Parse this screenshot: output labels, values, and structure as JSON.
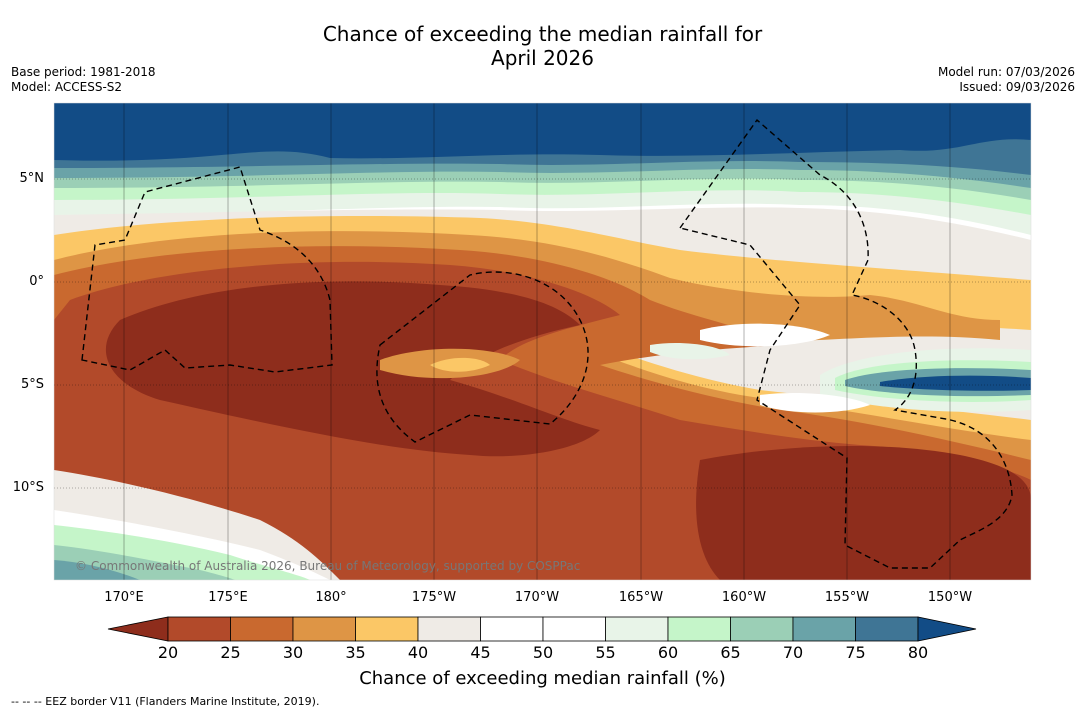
{
  "title": {
    "line1": "Chance of exceeding the median rainfall for",
    "line2": "April 2026"
  },
  "meta": {
    "base_period": "Base period: 1981-2018",
    "model": "Model: ACCESS-S2",
    "model_run": "Model run: 07/03/2026",
    "issued": "Issued: 09/03/2026"
  },
  "map": {
    "lat_labels": [
      "5°N",
      "0°",
      "5°S",
      "10°S"
    ],
    "lon_labels": [
      "170°E",
      "175°E",
      "180°",
      "175°W",
      "170°W",
      "165°W",
      "160°W",
      "155°W",
      "150°W"
    ],
    "copyright": "© Commonwealth of Australia 2026, Bureau of Meteorology, supported by COSPPac"
  },
  "colorbar": {
    "ticks": [
      "20",
      "25",
      "30",
      "35",
      "40",
      "45",
      "50",
      "55",
      "60",
      "65",
      "70",
      "75",
      "80"
    ],
    "colors": [
      "#8e2d1c",
      "#b24a2a",
      "#c9692f",
      "#de9545",
      "#fbc766",
      "#efebe6",
      "#ffffff",
      "#ffffff",
      "#e8f4e8",
      "#c5f5c9",
      "#9bcfb6",
      "#6aa3a8",
      "#3f7595",
      "#124c86"
    ],
    "label": "Chance of exceeding median rainfall (%)"
  },
  "footnote": "--  --  -- EEZ border V11 (Flanders Marine Institute, 2019)."
}
